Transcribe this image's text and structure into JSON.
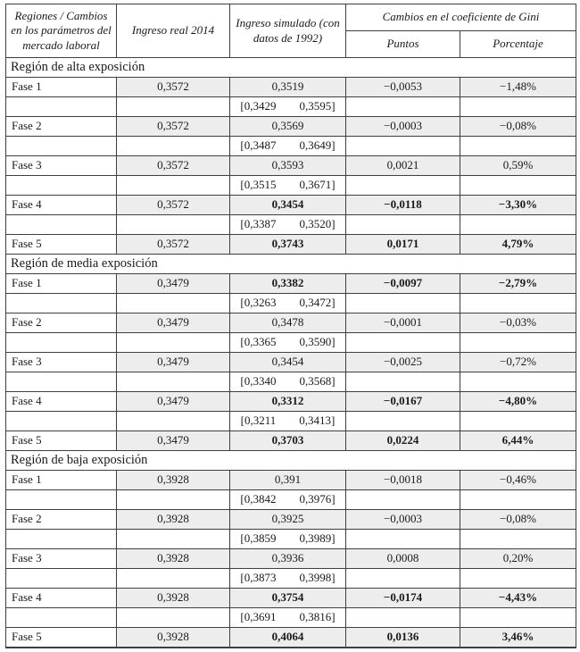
{
  "header": {
    "region_col": "Regiones / Cambios en los parámetros del mercado laboral",
    "ingreso_real_col": "Ingreso real 2014",
    "ingreso_simulado_col": "Ingreso simulado (con datos de 1992)",
    "gini_group_col": "Cambios en el coeficiente de Gini",
    "puntos_col": "Puntos",
    "porcentaje_col": "Porcentaje"
  },
  "colors": {
    "border": "#3f3f3f",
    "row_shade": "#ededed",
    "text": "#1a1a1a",
    "background": "#ffffff"
  },
  "sections": [
    {
      "title": "Región de alta exposición",
      "rows": [
        {
          "fase": "Fase 1",
          "ingreso_real": "0,3572",
          "ingreso_simulado": "0,3519",
          "puntos": "−0,0053",
          "porcentaje": "−1,48%",
          "bold": false,
          "intervalo": {
            "inferior": "[0,3429",
            "superior": "0,3595]"
          }
        },
        {
          "fase": "Fase 2",
          "ingreso_real": "0,3572",
          "ingreso_simulado": "0,3569",
          "puntos": "−0,0003",
          "porcentaje": "−0,08%",
          "bold": false,
          "intervalo": {
            "inferior": "[0,3487",
            "superior": "0,3649]"
          }
        },
        {
          "fase": "Fase 3",
          "ingreso_real": "0,3572",
          "ingreso_simulado": "0,3593",
          "puntos": "0,0021",
          "porcentaje": "0,59%",
          "bold": false,
          "intervalo": {
            "inferior": "[0,3515",
            "superior": "0,3671]"
          }
        },
        {
          "fase": "Fase 4",
          "ingreso_real": "0,3572",
          "ingreso_simulado": "0,3454",
          "puntos": "−0,0118",
          "porcentaje": "−3,30%",
          "bold": true,
          "intervalo": {
            "inferior": "[0,3387",
            "superior": "0,3520]"
          }
        },
        {
          "fase": "Fase 5",
          "ingreso_real": "0,3572",
          "ingreso_simulado": "0,3743",
          "puntos": "0,0171",
          "porcentaje": "4,79%",
          "bold": true,
          "intervalo": null
        }
      ]
    },
    {
      "title": "Región de media exposición",
      "rows": [
        {
          "fase": "Fase 1",
          "ingreso_real": "0,3479",
          "ingreso_simulado": "0,3382",
          "puntos": "−0,0097",
          "porcentaje": "−2,79%",
          "bold": true,
          "intervalo": {
            "inferior": "[0,3263",
            "superior": "0,3472]"
          }
        },
        {
          "fase": "Fase 2",
          "ingreso_real": "0,3479",
          "ingreso_simulado": "0,3478",
          "puntos": "−0,0001",
          "porcentaje": "−0,03%",
          "bold": false,
          "intervalo": {
            "inferior": "[0,3365",
            "superior": "0,3590]"
          }
        },
        {
          "fase": "Fase 3",
          "ingreso_real": "0,3479",
          "ingreso_simulado": "0,3454",
          "puntos": "−0,0025",
          "porcentaje": "−0,72%",
          "bold": false,
          "intervalo": {
            "inferior": "[0,3340",
            "superior": "0,3568]"
          }
        },
        {
          "fase": "Fase 4",
          "ingreso_real": "0,3479",
          "ingreso_simulado": "0,3312",
          "puntos": "−0,0167",
          "porcentaje": "−4,80%",
          "bold": true,
          "intervalo": {
            "inferior": "[0,3211",
            "superior": "0,3413]"
          }
        },
        {
          "fase": "Fase 5",
          "ingreso_real": "0,3479",
          "ingreso_simulado": "0,3703",
          "puntos": "0,0224",
          "porcentaje": "6,44%",
          "bold": true,
          "intervalo": null
        }
      ]
    },
    {
      "title": "Región de baja exposición",
      "rows": [
        {
          "fase": "Fase 1",
          "ingreso_real": "0,3928",
          "ingreso_simulado": "0,391",
          "puntos": "−0,0018",
          "porcentaje": "−0,46%",
          "bold": false,
          "intervalo": {
            "inferior": "[0,3842",
            "superior": "0,3976]"
          }
        },
        {
          "fase": "Fase 2",
          "ingreso_real": "0,3928",
          "ingreso_simulado": "0,3925",
          "puntos": "−0,0003",
          "porcentaje": "−0,08%",
          "bold": false,
          "intervalo": {
            "inferior": "[0,3859",
            "superior": "0,3989]"
          }
        },
        {
          "fase": "Fase 3",
          "ingreso_real": "0,3928",
          "ingreso_simulado": "0,3936",
          "puntos": "0,0008",
          "porcentaje": "0,20%",
          "bold": false,
          "intervalo": {
            "inferior": "[0,3873",
            "superior": "0,3998]"
          }
        },
        {
          "fase": "Fase 4",
          "ingreso_real": "0,3928",
          "ingreso_simulado": "0,3754",
          "puntos": "−0,0174",
          "porcentaje": "−4,43%",
          "bold": true,
          "intervalo": {
            "inferior": "[0,3691",
            "superior": "0,3816]"
          }
        },
        {
          "fase": "Fase 5",
          "ingreso_real": "0,3928",
          "ingreso_simulado": "0,4064",
          "puntos": "0,0136",
          "porcentaje": "3,46%",
          "bold": true,
          "intervalo": null
        }
      ]
    }
  ]
}
